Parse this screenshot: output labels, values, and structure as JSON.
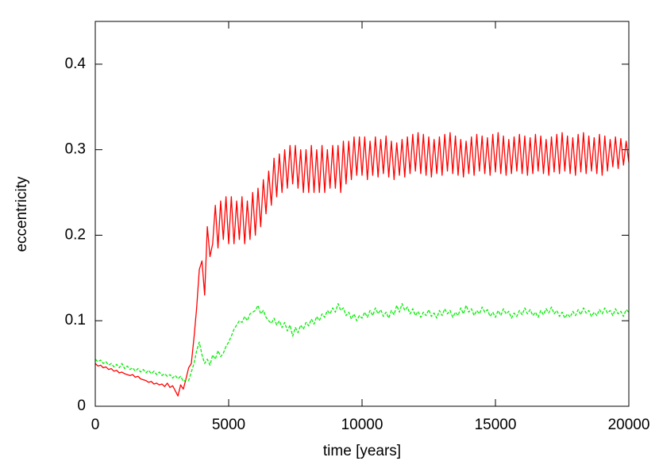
{
  "chart_data": {
    "type": "line",
    "xlabel": "time [years]",
    "ylabel": "eccentricity",
    "xlim": [
      0,
      20000
    ],
    "xticks": [
      0,
      5000,
      10000,
      15000,
      20000
    ],
    "ylim": [
      0,
      0.45
    ],
    "yticks": [
      0,
      0.1,
      0.2,
      0.3,
      0.4
    ],
    "x": [
      0,
      100,
      200,
      300,
      400,
      500,
      600,
      700,
      800,
      900,
      1000,
      1100,
      1200,
      1300,
      1400,
      1500,
      1600,
      1700,
      1800,
      1900,
      2000,
      2100,
      2200,
      2300,
      2400,
      2500,
      2600,
      2700,
      2800,
      2900,
      3000,
      3100,
      3200,
      3300,
      3400,
      3500,
      3600,
      3700,
      3800,
      3900,
      4000,
      4100,
      4200,
      4300,
      4400,
      4500,
      4600,
      4700,
      4800,
      4900,
      5000,
      5100,
      5200,
      5300,
      5400,
      5500,
      5600,
      5700,
      5800,
      5900,
      6000,
      6100,
      6200,
      6300,
      6400,
      6500,
      6600,
      6700,
      6800,
      6900,
      7000,
      7100,
      7200,
      7300,
      7400,
      7500,
      7600,
      7700,
      7800,
      7900,
      8000,
      8100,
      8200,
      8300,
      8400,
      8500,
      8600,
      8700,
      8800,
      8900,
      9000,
      9100,
      9200,
      9300,
      9400,
      9500,
      9600,
      9700,
      9800,
      9900,
      10000,
      10100,
      10200,
      10300,
      10400,
      10500,
      10600,
      10700,
      10800,
      10900,
      11000,
      11100,
      11200,
      11300,
      11400,
      11500,
      11600,
      11700,
      11800,
      11900,
      12000,
      12100,
      12200,
      12300,
      12400,
      12500,
      12600,
      12700,
      12800,
      12900,
      13000,
      13100,
      13200,
      13300,
      13400,
      13500,
      13600,
      13700,
      13800,
      13900,
      14000,
      14100,
      14200,
      14300,
      14400,
      14500,
      14600,
      14700,
      14800,
      14900,
      15000,
      15100,
      15200,
      15300,
      15400,
      15500,
      15600,
      15700,
      15800,
      15900,
      16000,
      16100,
      16200,
      16300,
      16400,
      16500,
      16600,
      16700,
      16800,
      16900,
      17000,
      17100,
      17200,
      17300,
      17400,
      17500,
      17600,
      17700,
      17800,
      17900,
      18000,
      18100,
      18200,
      18300,
      18400,
      18500,
      18600,
      18700,
      18800,
      18900,
      19000,
      19100,
      19200,
      19300,
      19400,
      19500,
      19600,
      19700,
      19800,
      19900,
      20000
    ],
    "series": [
      {
        "color": "#ff0000",
        "linestyle": "solid",
        "values": [
          0.05,
          0.047,
          0.048,
          0.045,
          0.046,
          0.043,
          0.044,
          0.041,
          0.042,
          0.039,
          0.04,
          0.038,
          0.037,
          0.036,
          0.037,
          0.034,
          0.035,
          0.032,
          0.031,
          0.03,
          0.028,
          0.029,
          0.026,
          0.027,
          0.025,
          0.026,
          0.023,
          0.027,
          0.022,
          0.024,
          0.018,
          0.012,
          0.025,
          0.02,
          0.032,
          0.045,
          0.05,
          0.08,
          0.115,
          0.16,
          0.17,
          0.13,
          0.21,
          0.175,
          0.19,
          0.235,
          0.185,
          0.24,
          0.195,
          0.245,
          0.19,
          0.245,
          0.19,
          0.24,
          0.195,
          0.245,
          0.19,
          0.24,
          0.195,
          0.25,
          0.2,
          0.255,
          0.21,
          0.265,
          0.225,
          0.275,
          0.235,
          0.29,
          0.245,
          0.295,
          0.25,
          0.3,
          0.255,
          0.305,
          0.26,
          0.305,
          0.255,
          0.3,
          0.25,
          0.3,
          0.25,
          0.305,
          0.25,
          0.3,
          0.25,
          0.305,
          0.25,
          0.3,
          0.255,
          0.305,
          0.255,
          0.305,
          0.25,
          0.31,
          0.26,
          0.31,
          0.265,
          0.315,
          0.27,
          0.315,
          0.27,
          0.315,
          0.265,
          0.31,
          0.27,
          0.315,
          0.268,
          0.312,
          0.272,
          0.316,
          0.268,
          0.31,
          0.265,
          0.308,
          0.27,
          0.312,
          0.268,
          0.315,
          0.272,
          0.318,
          0.275,
          0.32,
          0.272,
          0.318,
          0.27,
          0.315,
          0.268,
          0.312,
          0.272,
          0.315,
          0.27,
          0.318,
          0.275,
          0.32,
          0.272,
          0.316,
          0.27,
          0.312,
          0.268,
          0.31,
          0.272,
          0.315,
          0.27,
          0.318,
          0.275,
          0.316,
          0.272,
          0.314,
          0.27,
          0.318,
          0.274,
          0.32,
          0.272,
          0.316,
          0.27,
          0.312,
          0.272,
          0.315,
          0.275,
          0.318,
          0.272,
          0.316,
          0.27,
          0.314,
          0.272,
          0.318,
          0.275,
          0.316,
          0.272,
          0.312,
          0.27,
          0.315,
          0.274,
          0.318,
          0.272,
          0.32,
          0.275,
          0.316,
          0.272,
          0.314,
          0.27,
          0.318,
          0.274,
          0.32,
          0.272,
          0.316,
          0.275,
          0.314,
          0.272,
          0.318,
          0.27,
          0.316,
          0.275,
          0.312,
          0.28,
          0.315,
          0.278,
          0.313,
          0.282,
          0.31,
          0.285
        ]
      },
      {
        "color": "#00ee00",
        "linestyle": "dashed",
        "values": [
          0.055,
          0.052,
          0.054,
          0.05,
          0.052,
          0.048,
          0.05,
          0.046,
          0.049,
          0.045,
          0.05,
          0.044,
          0.047,
          0.043,
          0.045,
          0.041,
          0.044,
          0.04,
          0.043,
          0.039,
          0.042,
          0.038,
          0.041,
          0.037,
          0.04,
          0.036,
          0.038,
          0.035,
          0.037,
          0.033,
          0.036,
          0.032,
          0.035,
          0.029,
          0.031,
          0.03,
          0.04,
          0.05,
          0.065,
          0.075,
          0.06,
          0.05,
          0.055,
          0.048,
          0.06,
          0.055,
          0.065,
          0.058,
          0.062,
          0.07,
          0.075,
          0.082,
          0.09,
          0.095,
          0.1,
          0.098,
          0.105,
          0.1,
          0.108,
          0.11,
          0.112,
          0.118,
          0.108,
          0.112,
          0.104,
          0.1,
          0.097,
          0.103,
          0.095,
          0.1,
          0.092,
          0.098,
          0.088,
          0.095,
          0.082,
          0.092,
          0.086,
          0.095,
          0.09,
          0.098,
          0.094,
          0.102,
          0.096,
          0.105,
          0.1,
          0.108,
          0.104,
          0.112,
          0.108,
          0.115,
          0.11,
          0.12,
          0.112,
          0.115,
          0.106,
          0.11,
          0.102,
          0.108,
          0.1,
          0.106,
          0.103,
          0.11,
          0.104,
          0.112,
          0.106,
          0.115,
          0.108,
          0.113,
          0.105,
          0.11,
          0.103,
          0.112,
          0.107,
          0.118,
          0.11,
          0.12,
          0.112,
          0.116,
          0.108,
          0.114,
          0.106,
          0.111,
          0.104,
          0.11,
          0.106,
          0.113,
          0.105,
          0.109,
          0.103,
          0.112,
          0.106,
          0.114,
          0.108,
          0.112,
          0.104,
          0.11,
          0.106,
          0.115,
          0.108,
          0.118,
          0.11,
          0.114,
          0.106,
          0.112,
          0.108,
          0.116,
          0.11,
          0.113,
          0.105,
          0.11,
          0.104,
          0.112,
          0.106,
          0.114,
          0.108,
          0.111,
          0.103,
          0.109,
          0.105,
          0.112,
          0.107,
          0.115,
          0.108,
          0.113,
          0.106,
          0.11,
          0.104,
          0.112,
          0.107,
          0.114,
          0.109,
          0.116,
          0.108,
          0.112,
          0.105,
          0.11,
          0.103,
          0.108,
          0.104,
          0.111,
          0.106,
          0.113,
          0.107,
          0.115,
          0.109,
          0.112,
          0.105,
          0.11,
          0.106,
          0.113,
          0.108,
          0.115,
          0.109,
          0.112,
          0.106,
          0.114,
          0.108,
          0.111,
          0.105,
          0.113,
          0.11
        ]
      }
    ]
  }
}
